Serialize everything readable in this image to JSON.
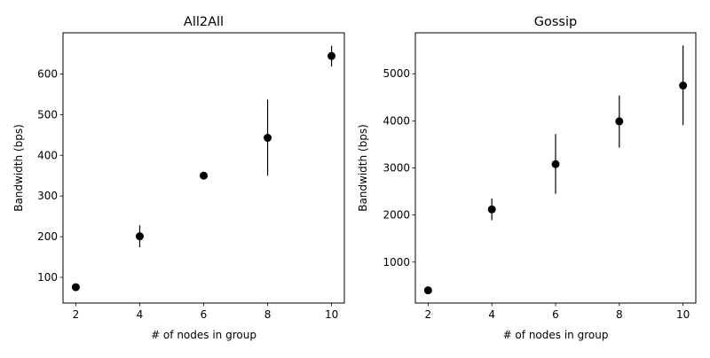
{
  "chart_data": [
    {
      "type": "scatter",
      "title": "All2All",
      "xlabel": "# of nodes in group",
      "ylabel": "Bandwidth (bps)",
      "xlim": [
        1.6,
        10.4
      ],
      "ylim": [
        37,
        701
      ],
      "xticks": [
        2,
        4,
        6,
        8,
        10
      ],
      "yticks": [
        100,
        200,
        300,
        400,
        500,
        600
      ],
      "grid": false,
      "marker_color": "#000000",
      "points": [
        {
          "x": 2,
          "y": 76,
          "err_low": 76,
          "err_high": 76
        },
        {
          "x": 4,
          "y": 201,
          "err_low": 174,
          "err_high": 228
        },
        {
          "x": 6,
          "y": 350,
          "err_low": 345,
          "err_high": 355
        },
        {
          "x": 8,
          "y": 443,
          "err_low": 350,
          "err_high": 537
        },
        {
          "x": 10,
          "y": 644,
          "err_low": 618,
          "err_high": 669
        }
      ]
    },
    {
      "type": "scatter",
      "title": "Gossip",
      "xlabel": "# of nodes in group",
      "ylabel": "Bandwidth (bps)",
      "xlim": [
        1.6,
        10.4
      ],
      "ylim": [
        130,
        5870
      ],
      "xticks": [
        2,
        4,
        6,
        8,
        10
      ],
      "yticks": [
        1000,
        2000,
        3000,
        4000,
        5000
      ],
      "grid": false,
      "marker_color": "#000000",
      "points": [
        {
          "x": 2,
          "y": 400,
          "err_low": 400,
          "err_high": 400
        },
        {
          "x": 4,
          "y": 2120,
          "err_low": 1890,
          "err_high": 2350
        },
        {
          "x": 6,
          "y": 3080,
          "err_low": 2450,
          "err_high": 3720
        },
        {
          "x": 8,
          "y": 3990,
          "err_low": 3430,
          "err_high": 4540
        },
        {
          "x": 10,
          "y": 4750,
          "err_low": 3910,
          "err_high": 5600
        }
      ]
    }
  ]
}
